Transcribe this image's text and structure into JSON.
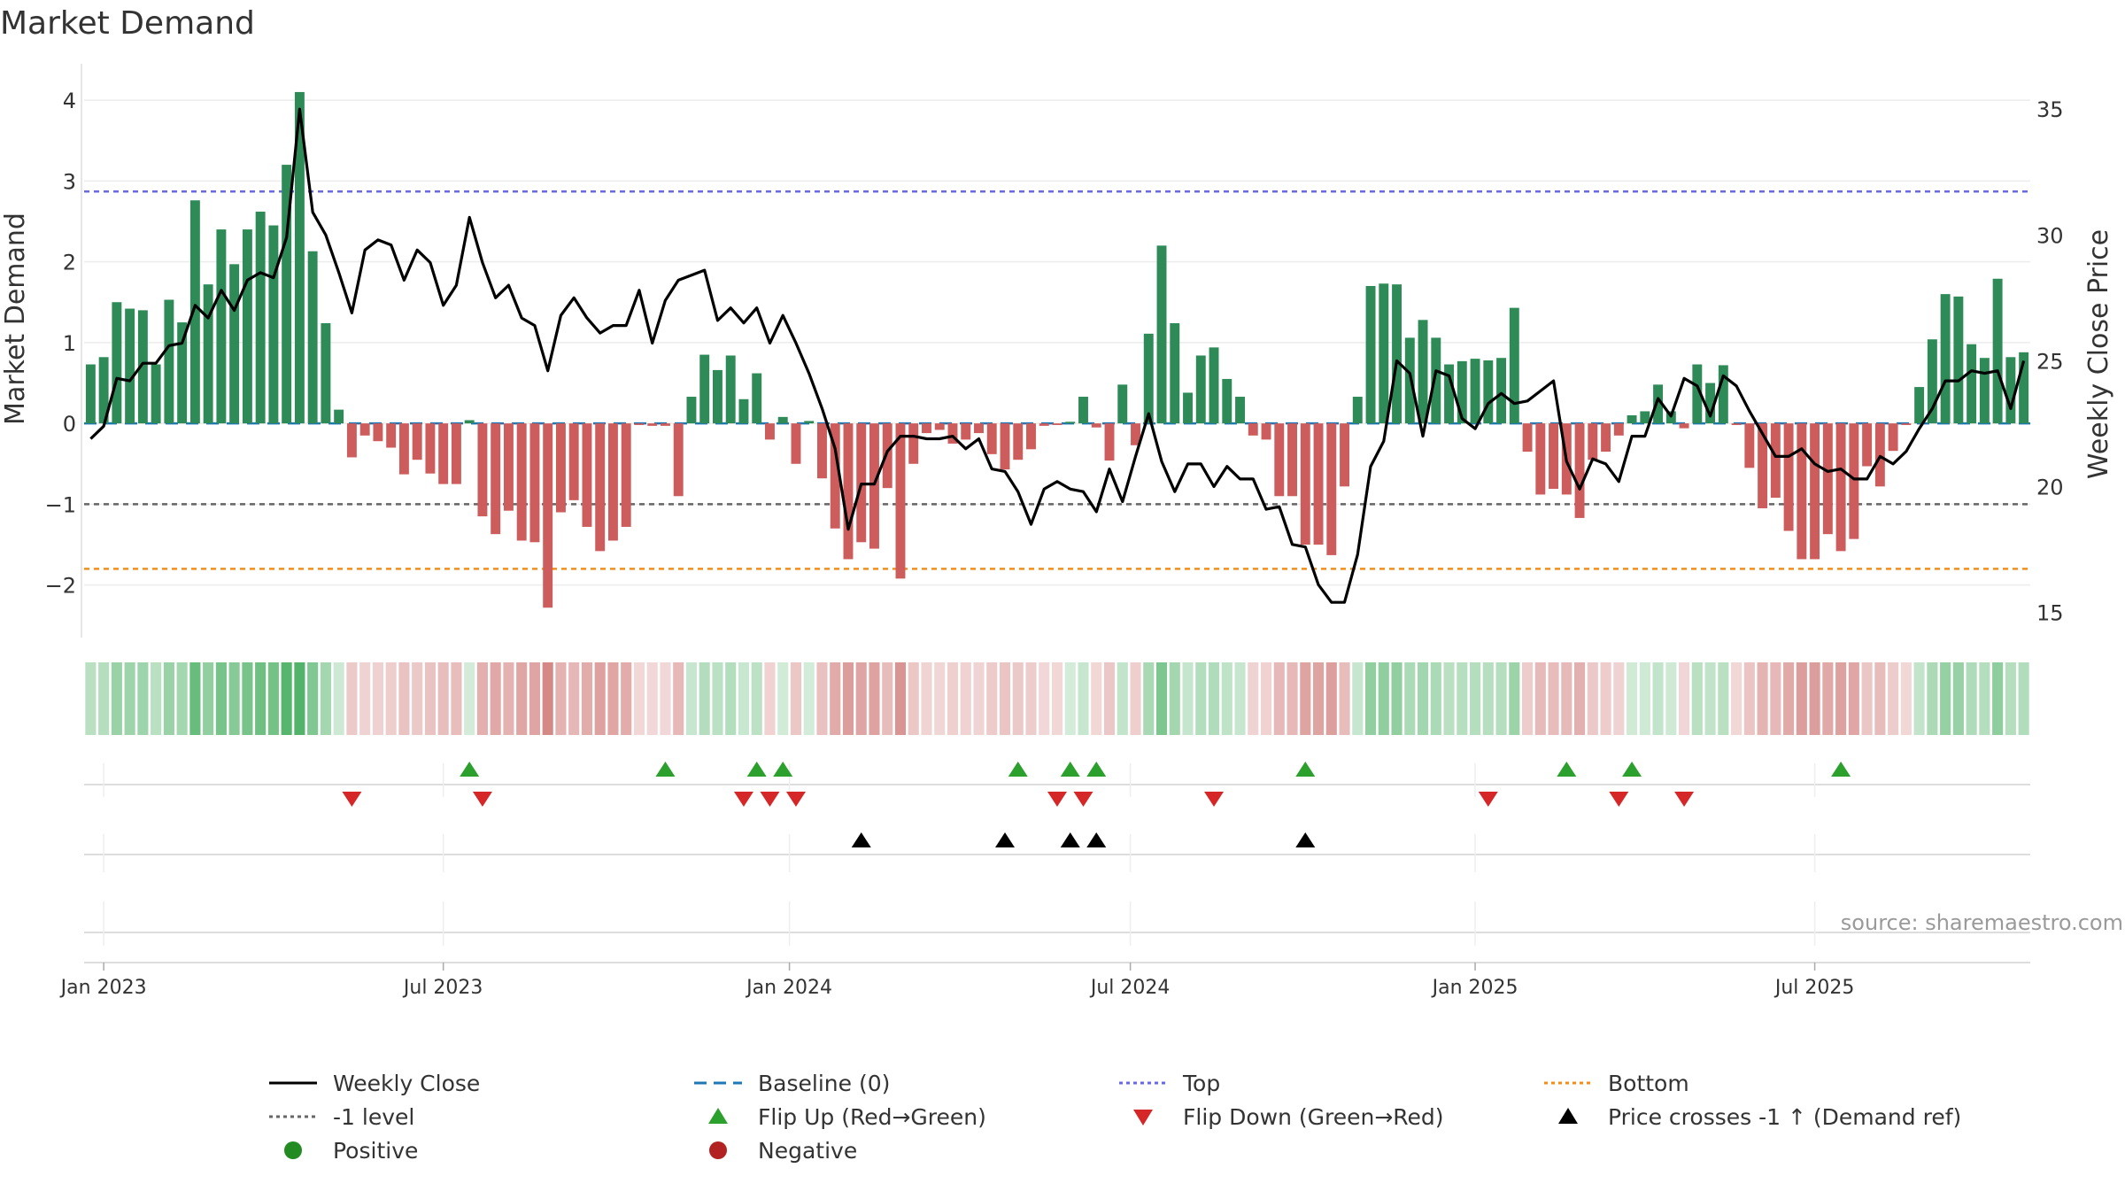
{
  "chart_data": {
    "type": "bar",
    "title": "Market Demand",
    "ylabel_left": "Market Demand",
    "ylabel_right": "Weekly Close Price",
    "source": "source: sharemaestro.com",
    "ylim_left": [
      -2.65,
      4.45
    ],
    "ylim_right": [
      14.0,
      36.8
    ],
    "yticks_left": [
      {
        "value": 4,
        "label": "4"
      },
      {
        "value": 3,
        "label": "3"
      },
      {
        "value": 2,
        "label": "2"
      },
      {
        "value": 1,
        "label": "1"
      },
      {
        "value": 0,
        "label": "0"
      },
      {
        "value": -1,
        "label": "−1"
      },
      {
        "value": -2,
        "label": "−2"
      }
    ],
    "yticks_right": [
      {
        "value": 35,
        "label": "35"
      },
      {
        "value": 30,
        "label": "30"
      },
      {
        "value": 25,
        "label": "25"
      },
      {
        "value": 20,
        "label": "20"
      },
      {
        "value": 15,
        "label": "15"
      }
    ],
    "xticks": [
      {
        "index": 1,
        "label": "Jan 2023"
      },
      {
        "index": 27,
        "label": "Jul 2023"
      },
      {
        "index": 53.5,
        "label": "Jan 2024"
      },
      {
        "index": 79.6,
        "label": "Jul 2024"
      },
      {
        "index": 106,
        "label": "Jan 2025"
      },
      {
        "index": 132,
        "label": "Jul 2025"
      }
    ],
    "levels": {
      "top": 2.87,
      "bottom": -1.8,
      "minus_one": -1.0,
      "baseline": 0
    },
    "demand": [
      0.73,
      0.82,
      1.5,
      1.42,
      1.4,
      0.73,
      1.53,
      1.25,
      2.76,
      1.72,
      2.4,
      1.97,
      2.4,
      2.62,
      2.45,
      3.2,
      4.1,
      2.13,
      1.24,
      0.17,
      -0.42,
      -0.15,
      -0.22,
      -0.3,
      -0.63,
      -0.45,
      -0.62,
      -0.75,
      -0.75,
      0.04,
      -1.15,
      -1.37,
      -1.08,
      -1.45,
      -1.47,
      -2.28,
      -1.1,
      -0.95,
      -1.28,
      -1.58,
      -1.45,
      -1.28,
      -0.02,
      -0.03,
      -0.03,
      -0.9,
      0.33,
      0.85,
      0.66,
      0.84,
      0.3,
      0.62,
      -0.2,
      0.08,
      -0.5,
      0.03,
      -0.68,
      -1.3,
      -1.68,
      -1.47,
      -1.55,
      -0.8,
      -1.92,
      -0.5,
      -0.12,
      -0.08,
      -0.25,
      -0.2,
      -0.12,
      -0.38,
      -0.57,
      -0.45,
      -0.32,
      -0.03,
      -0.02,
      0.02,
      0.33,
      -0.05,
      -0.46,
      0.48,
      -0.27,
      1.11,
      2.2,
      1.24,
      0.38,
      0.84,
      0.94,
      0.55,
      0.33,
      -0.15,
      -0.2,
      -0.9,
      -0.9,
      -1.5,
      -1.5,
      -1.63,
      -0.78,
      0.33,
      1.7,
      1.73,
      1.72,
      1.06,
      1.28,
      1.06,
      0.73,
      0.77,
      0.8,
      0.78,
      0.81,
      1.43,
      -0.35,
      -0.88,
      -0.81,
      -0.88,
      -1.17,
      -0.45,
      -0.35,
      -0.15,
      0.1,
      0.15,
      0.48,
      0.15,
      -0.06,
      0.73,
      0.5,
      0.72,
      -0.02,
      -0.55,
      -1.05,
      -0.92,
      -1.33,
      -1.68,
      -1.68,
      -1.37,
      -1.58,
      -1.43,
      -0.53,
      -0.78,
      -0.34,
      -0.02,
      0.45,
      1.04,
      1.6,
      1.57,
      0.98,
      0.81,
      1.79,
      0.82,
      0.88
    ],
    "close": [
      21.9,
      22.4,
      24.3,
      24.2,
      24.9,
      24.9,
      25.6,
      25.7,
      27.2,
      26.7,
      27.8,
      27.0,
      28.2,
      28.5,
      28.3,
      29.9,
      35.0,
      30.9,
      30.0,
      28.5,
      26.9,
      29.4,
      29.8,
      29.6,
      28.2,
      29.4,
      28.9,
      27.2,
      28.0,
      30.7,
      28.9,
      27.5,
      28.0,
      26.7,
      26.4,
      24.6,
      26.8,
      27.5,
      26.7,
      26.1,
      26.4,
      26.4,
      27.8,
      25.7,
      27.4,
      28.2,
      28.4,
      28.6,
      26.6,
      27.1,
      26.5,
      27.1,
      25.7,
      26.8,
      25.7,
      24.5,
      23.1,
      21.5,
      18.3,
      20.1,
      20.1,
      21.4,
      22.0,
      22.0,
      21.9,
      21.9,
      22.0,
      21.5,
      21.9,
      20.7,
      20.6,
      19.8,
      18.5,
      19.9,
      20.2,
      19.9,
      19.8,
      19.0,
      20.7,
      19.4,
      21.2,
      22.9,
      21.0,
      19.8,
      20.9,
      20.9,
      20.0,
      20.8,
      20.3,
      20.3,
      19.1,
      19.2,
      17.7,
      17.6,
      16.1,
      15.4,
      15.4,
      17.3,
      20.8,
      21.8,
      25.0,
      24.5,
      22.0,
      24.6,
      24.4,
      22.7,
      22.3,
      23.3,
      23.7,
      23.3,
      23.4,
      23.8,
      24.2,
      21.0,
      19.9,
      21.1,
      20.9,
      20.2,
      22.0,
      22.0,
      23.5,
      22.8,
      24.3,
      24.0,
      22.8,
      24.4,
      24.0,
      23.0,
      22.1,
      21.2,
      21.2,
      21.5,
      20.9,
      20.6,
      20.7,
      20.3,
      20.3,
      21.2,
      20.9,
      21.4,
      22.3,
      23.1,
      24.2,
      24.2,
      24.6,
      24.5,
      24.6,
      23.1,
      25.0
    ],
    "intensity_bands": "per-week demand strength strip; color follows the demand series",
    "flip_up_indices": [
      29,
      44,
      51,
      53,
      71,
      75,
      77,
      93,
      113,
      118,
      134
    ],
    "flip_down_indices": [
      20,
      30,
      50,
      52,
      54,
      74,
      76,
      86,
      107,
      117,
      122
    ],
    "cross_indices": [
      59,
      70,
      75,
      77,
      93
    ],
    "colors": {
      "positive_bar": "#2e8b57",
      "negative_bar": "#cd5c5c",
      "close_line": "#000000",
      "top_line": "#6a6ae0",
      "bottom_line": "#f28e1c",
      "minus_one_line": "#666666",
      "baseline": "#1f77b4",
      "flip_up": "#2ca02c",
      "flip_down": "#d62728",
      "cross": "#000000",
      "positive_dot": "#228b22",
      "negative_dot": "#b22222"
    }
  },
  "legend": [
    {
      "key": "close",
      "label": "Weekly Close"
    },
    {
      "key": "baseline",
      "label": "Baseline (0)"
    },
    {
      "key": "top",
      "label": "Top"
    },
    {
      "key": "bottom",
      "label": "Bottom"
    },
    {
      "key": "minus_one",
      "label": "-1 level"
    },
    {
      "key": "flip_up",
      "label": "Flip Up (Red→Green)"
    },
    {
      "key": "flip_down",
      "label": "Flip Down (Green→Red)"
    },
    {
      "key": "cross",
      "label": "Price crosses -1 ↑ (Demand ref)"
    },
    {
      "key": "positive",
      "label": "Positive"
    },
    {
      "key": "negative",
      "label": "Negative"
    }
  ]
}
